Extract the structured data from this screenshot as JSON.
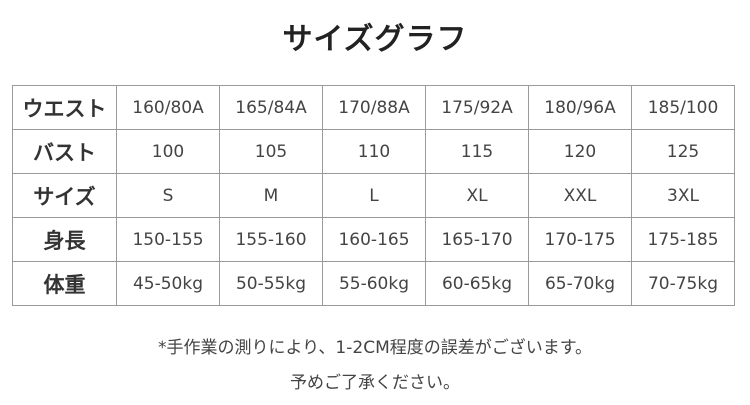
{
  "title": "サイズグラフ",
  "table": {
    "rows": [
      {
        "label": "ウエスト",
        "values": [
          "160/80A",
          "165/84A",
          "170/88A",
          "175/92A",
          "180/96A",
          "185/100"
        ]
      },
      {
        "label": "バスト",
        "values": [
          "100",
          "105",
          "110",
          "115",
          "120",
          "125"
        ]
      },
      {
        "label": "サイズ",
        "values": [
          "S",
          "M",
          "L",
          "XL",
          "XXL",
          "3XL"
        ]
      },
      {
        "label": "身長",
        "values": [
          "150-155",
          "155-160",
          "160-165",
          "165-170",
          "170-175",
          "175-185"
        ]
      },
      {
        "label": "体重",
        "values": [
          "45-50kg",
          "50-55kg",
          "55-60kg",
          "60-65kg",
          "65-70kg",
          "70-75kg"
        ]
      }
    ]
  },
  "notes": {
    "line1": "*手作業の測りにより、1-2CM程度の誤差がございます。",
    "line2": "予めご了承ください。"
  }
}
